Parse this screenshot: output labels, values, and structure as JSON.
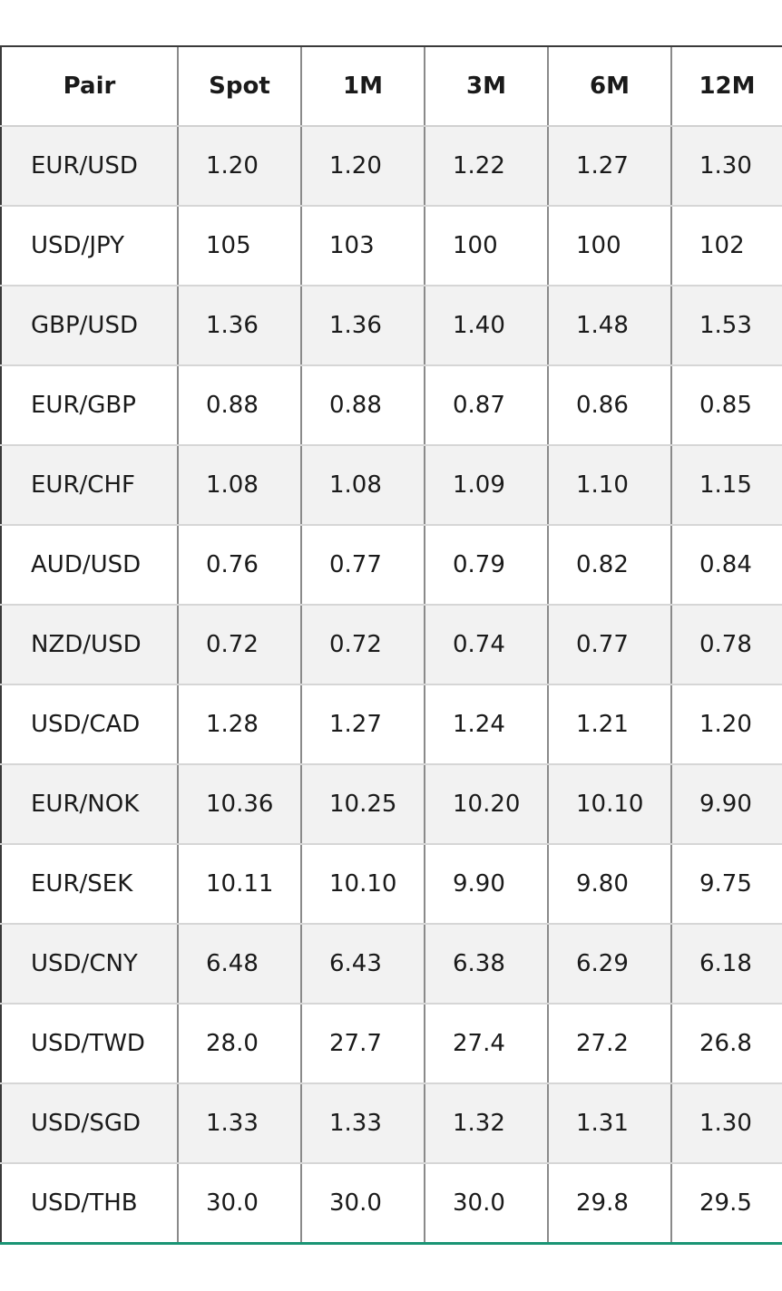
{
  "table": {
    "headers": [
      "Pair",
      "Spot",
      "1M",
      "3M",
      "6M",
      "12M"
    ],
    "rows": [
      [
        "EUR/USD",
        "1.20",
        "1.20",
        "1.22",
        "1.27",
        "1.30"
      ],
      [
        "USD/JPY",
        "105",
        "103",
        "100",
        "100",
        "102"
      ],
      [
        "GBP/USD",
        "1.36",
        "1.36",
        "1.40",
        "1.48",
        "1.53"
      ],
      [
        "EUR/GBP",
        "0.88",
        "0.88",
        "0.87",
        "0.86",
        "0.85"
      ],
      [
        "EUR/CHF",
        "1.08",
        "1.08",
        "1.09",
        "1.10",
        "1.15"
      ],
      [
        "AUD/USD",
        "0.76",
        "0.77",
        "0.79",
        "0.82",
        "0.84"
      ],
      [
        "NZD/USD",
        "0.72",
        "0.72",
        "0.74",
        "0.77",
        "0.78"
      ],
      [
        "USD/CAD",
        "1.28",
        "1.27",
        "1.24",
        "1.21",
        "1.20"
      ],
      [
        "EUR/NOK",
        "10.36",
        "10.25",
        "10.20",
        "10.10",
        "9.90"
      ],
      [
        "EUR/SEK",
        "10.11",
        "10.10",
        "9.90",
        "9.80",
        "9.75"
      ],
      [
        "USD/CNY",
        "6.48",
        "6.43",
        "6.38",
        "6.29",
        "6.18"
      ],
      [
        "USD/TWD",
        "28.0",
        "27.7",
        "27.4",
        "27.2",
        "26.8"
      ],
      [
        "USD/SGD",
        "1.33",
        "1.33",
        "1.32",
        "1.31",
        "1.30"
      ],
      [
        "USD/THB",
        "30.0",
        "30.0",
        "30.0",
        "29.8",
        "29.5"
      ]
    ]
  },
  "colors": {
    "row_stripe": "#f2f2f2",
    "bottom_rule": "#1a9474"
  }
}
